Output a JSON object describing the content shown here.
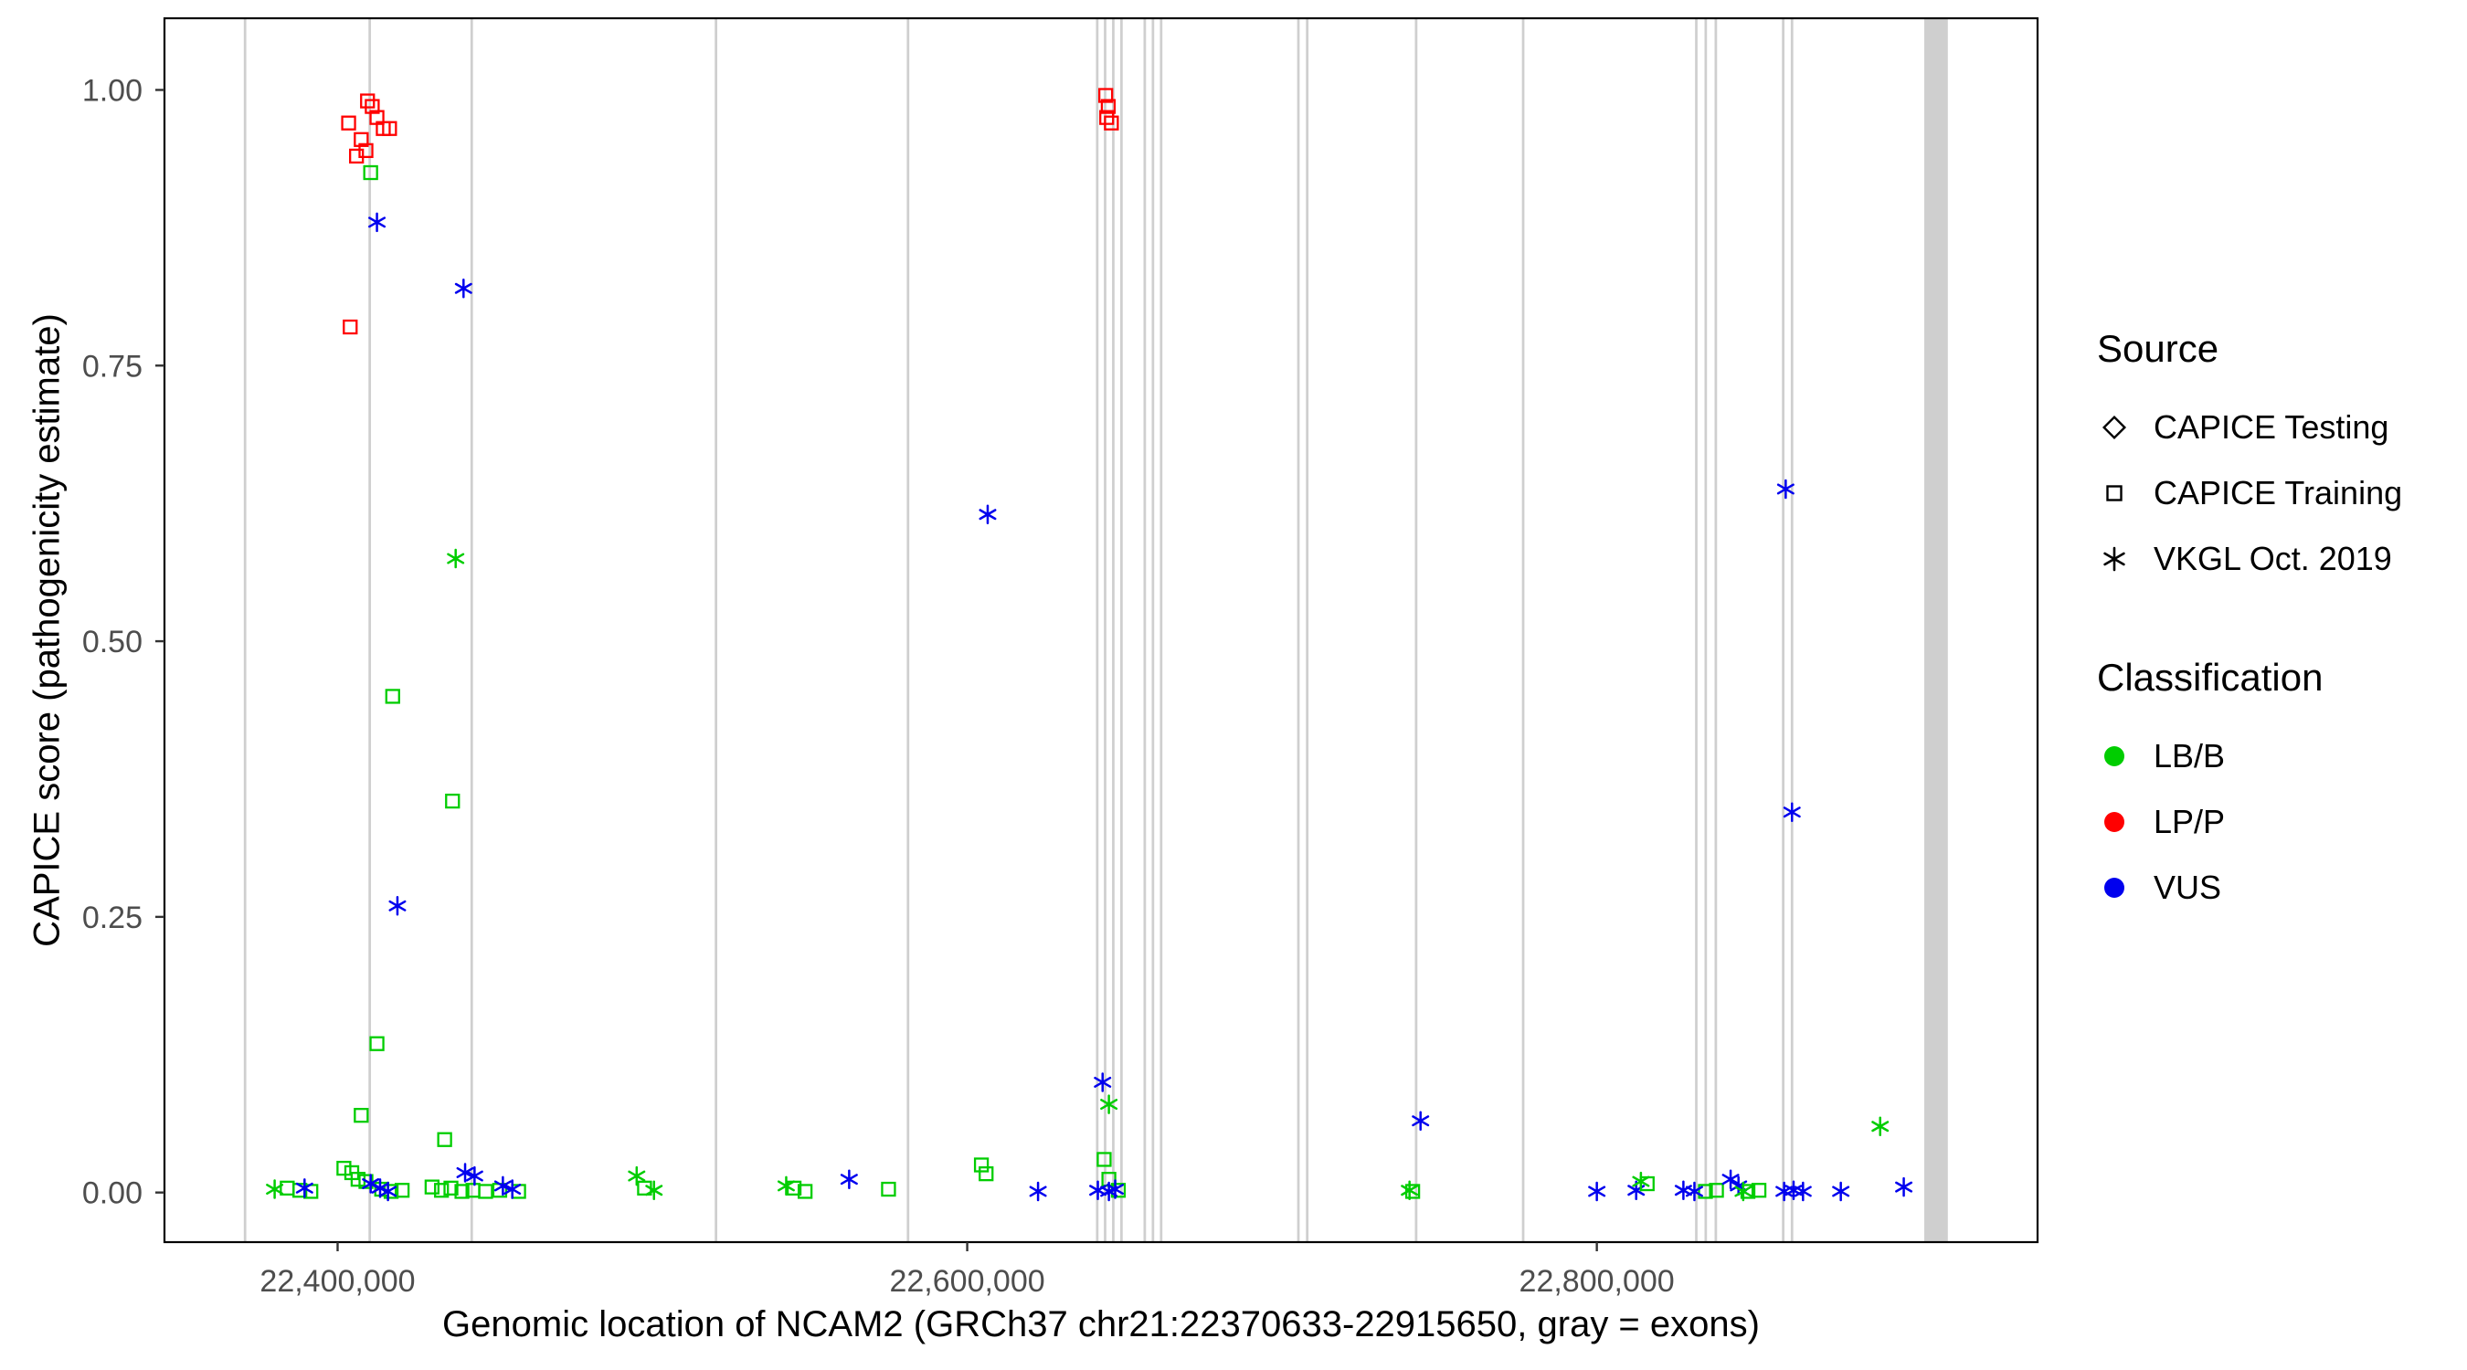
{
  "chart_data": {
    "type": "scatter",
    "title": "",
    "xlabel": "Genomic location of NCAM2 (GRCh37 chr21:22370633-22915650, gray = exons)",
    "ylabel": "CAPICE score (pathogenicity estimate)",
    "xlim": [
      22345000,
      22940000
    ],
    "ylim": [
      -0.045,
      1.065
    ],
    "grid": false,
    "legend_position": "right",
    "x_ticks": {
      "values": [
        22400000,
        22600000,
        22800000
      ],
      "labels": [
        "22,400,000",
        "22,600,000",
        "22,800,000"
      ]
    },
    "y_ticks": {
      "values": [
        0,
        0.25,
        0.5,
        0.75,
        1.0
      ],
      "labels": [
        "0.00",
        "0.25",
        "0.50",
        "0.75",
        "1.00"
      ]
    },
    "colors": {
      "LB_B": "#00CD00",
      "LP_P": "#FF0000",
      "VUS": "#0000EE"
    },
    "exon_color": "#CFCFCF",
    "exons": [
      [
        22370200,
        22371000
      ],
      [
        22409800,
        22410600
      ],
      [
        22442200,
        22443000
      ],
      [
        22519800,
        22520600
      ],
      [
        22580800,
        22581600
      ],
      [
        22640900,
        22641700
      ],
      [
        22643400,
        22644200
      ],
      [
        22646000,
        22646800
      ],
      [
        22648600,
        22649400
      ],
      [
        22656000,
        22656800
      ],
      [
        22658600,
        22659400
      ],
      [
        22661200,
        22662000
      ],
      [
        22704800,
        22705600
      ],
      [
        22707600,
        22708400
      ],
      [
        22742200,
        22743000
      ],
      [
        22776200,
        22777000
      ],
      [
        22831200,
        22832000
      ],
      [
        22834200,
        22835000
      ],
      [
        22837400,
        22838200
      ],
      [
        22858800,
        22859600
      ],
      [
        22861600,
        22862400
      ],
      [
        22904000,
        22911500
      ]
    ],
    "series": [
      {
        "name": "CAPICE Training / LP_P",
        "source": "CAPICE Training",
        "classification": "LP_P",
        "shape": "square",
        "color": "#FF0000",
        "points": [
          [
            22403500,
            0.97
          ],
          [
            22406000,
            0.94
          ],
          [
            22407500,
            0.955
          ],
          [
            22409000,
            0.945
          ],
          [
            22409500,
            0.99
          ],
          [
            22411000,
            0.985
          ],
          [
            22412500,
            0.975
          ],
          [
            22414500,
            0.965
          ],
          [
            22416500,
            0.965
          ],
          [
            22404000,
            0.785
          ],
          [
            22644000,
            0.995
          ],
          [
            22644800,
            0.985
          ],
          [
            22644300,
            0.975
          ],
          [
            22645800,
            0.97
          ]
        ]
      },
      {
        "name": "CAPICE Training / LB_B",
        "source": "CAPICE Training",
        "classification": "LB_B",
        "shape": "square",
        "color": "#00CD00",
        "points": [
          [
            22410500,
            0.925
          ],
          [
            22417500,
            0.45
          ],
          [
            22436500,
            0.355
          ],
          [
            22412500,
            0.135
          ],
          [
            22407500,
            0.07
          ],
          [
            22434000,
            0.048
          ],
          [
            22384000,
            0.004
          ],
          [
            22388000,
            0.002
          ],
          [
            22391500,
            0.001
          ],
          [
            22402000,
            0.022
          ],
          [
            22404500,
            0.018
          ],
          [
            22406500,
            0.012
          ],
          [
            22409000,
            0.01
          ],
          [
            22414000,
            0.003
          ],
          [
            22417000,
            0.001
          ],
          [
            22420500,
            0.002
          ],
          [
            22430000,
            0.005
          ],
          [
            22433000,
            0.002
          ],
          [
            22436000,
            0.004
          ],
          [
            22439500,
            0.001
          ],
          [
            22443000,
            0.002
          ],
          [
            22447000,
            0.001
          ],
          [
            22451500,
            0.002
          ],
          [
            22457500,
            0.001
          ],
          [
            22497500,
            0.004
          ],
          [
            22545000,
            0.004
          ],
          [
            22548500,
            0.001
          ],
          [
            22575000,
            0.003
          ],
          [
            22604500,
            0.025
          ],
          [
            22606000,
            0.017
          ],
          [
            22643500,
            0.03
          ],
          [
            22645000,
            0.012
          ],
          [
            22648000,
            0.002
          ],
          [
            22741500,
            0.001
          ],
          [
            22816000,
            0.008
          ],
          [
            22834500,
            0.001
          ],
          [
            22838000,
            0.002
          ],
          [
            22848000,
            0.001
          ],
          [
            22851500,
            0.002
          ]
        ]
      },
      {
        "name": "VKGL Oct. 2019 / VUS",
        "source": "VKGL Oct. 2019",
        "classification": "VUS",
        "shape": "asterisk",
        "color": "#0000EE",
        "points": [
          [
            22412500,
            0.88
          ],
          [
            22440000,
            0.82
          ],
          [
            22606500,
            0.615
          ],
          [
            22860000,
            0.638
          ],
          [
            22862000,
            0.345
          ],
          [
            22419000,
            0.26
          ],
          [
            22389500,
            0.004
          ],
          [
            22410500,
            0.008
          ],
          [
            22413500,
            0.004
          ],
          [
            22416000,
            0.001
          ],
          [
            22440500,
            0.018
          ],
          [
            22443500,
            0.015
          ],
          [
            22452500,
            0.006
          ],
          [
            22455500,
            0.003
          ],
          [
            22562500,
            0.012
          ],
          [
            22622500,
            0.001
          ],
          [
            22643000,
            0.1
          ],
          [
            22641500,
            0.002
          ],
          [
            22645000,
            0.001
          ],
          [
            22647000,
            0.003
          ],
          [
            22744000,
            0.065
          ],
          [
            22800000,
            0.001
          ],
          [
            22812500,
            0.002
          ],
          [
            22827500,
            0.002
          ],
          [
            22831000,
            0.001
          ],
          [
            22842500,
            0.012
          ],
          [
            22845000,
            0.006
          ],
          [
            22859500,
            0.001
          ],
          [
            22862500,
            0.002
          ],
          [
            22865500,
            0.001
          ],
          [
            22877500,
            0.001
          ],
          [
            22897500,
            0.005
          ]
        ]
      },
      {
        "name": "VKGL Oct. 2019 / LB_B",
        "source": "VKGL Oct. 2019",
        "classification": "LB_B",
        "shape": "asterisk",
        "color": "#00CD00",
        "points": [
          [
            22437500,
            0.575
          ],
          [
            22380000,
            0.003
          ],
          [
            22495000,
            0.015
          ],
          [
            22500500,
            0.002
          ],
          [
            22542500,
            0.006
          ],
          [
            22645000,
            0.08
          ],
          [
            22740500,
            0.002
          ],
          [
            22814000,
            0.01
          ],
          [
            22846500,
            0.001
          ],
          [
            22890000,
            0.06
          ]
        ]
      }
    ]
  },
  "legend": {
    "source": {
      "title": "Source",
      "items": [
        {
          "label": "CAPICE Testing",
          "shape": "diamond"
        },
        {
          "label": "CAPICE Training",
          "shape": "square"
        },
        {
          "label": "VKGL Oct. 2019",
          "shape": "asterisk"
        }
      ]
    },
    "classification": {
      "title": "Classification",
      "items": [
        {
          "label": "LB/B",
          "color": "#00CD00"
        },
        {
          "label": "LP/P",
          "color": "#FF0000"
        },
        {
          "label": "VUS",
          "color": "#0000EE"
        }
      ]
    }
  }
}
